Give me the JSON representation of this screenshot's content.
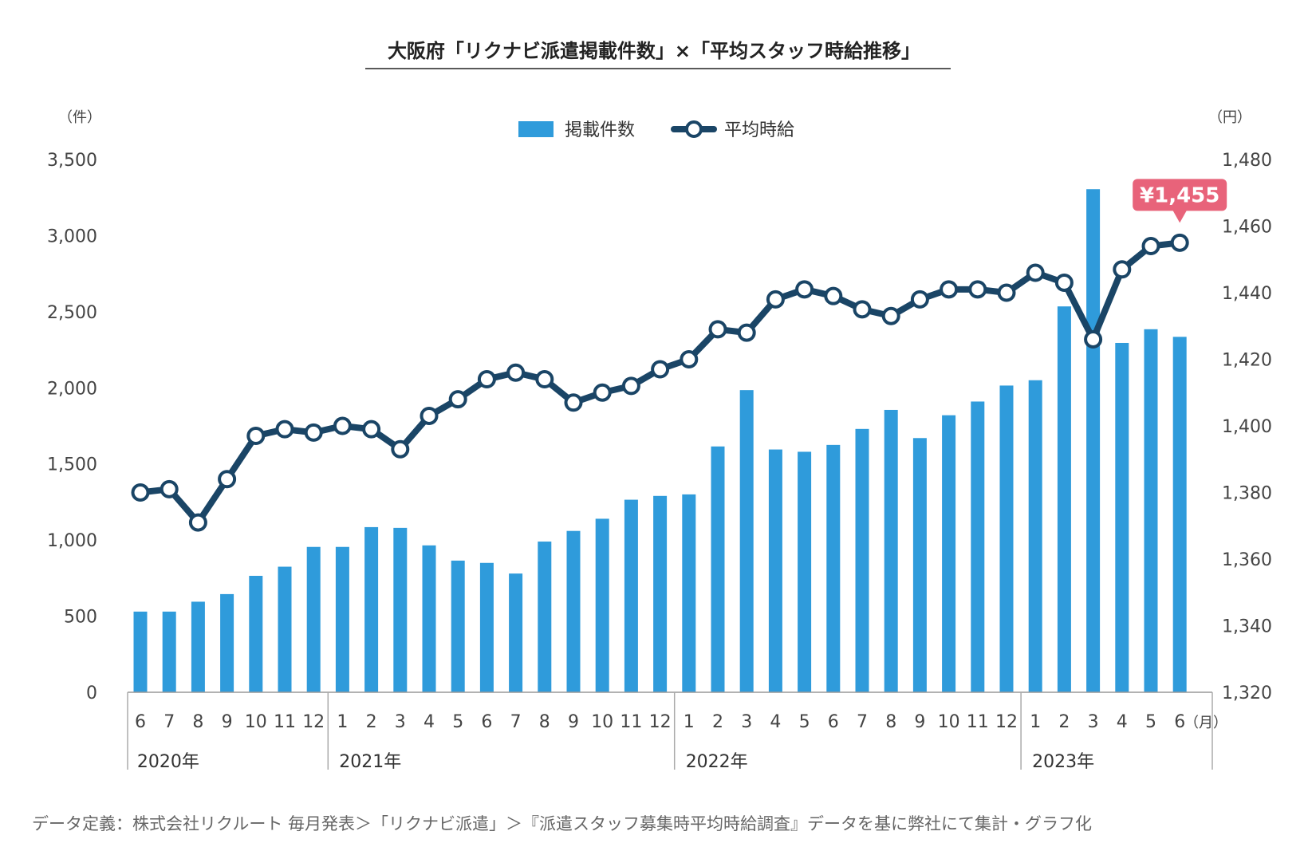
{
  "title": "大阪府「リクナビ派遣掲載件数」×「平均スタッフ時給推移」",
  "legend": {
    "bar_label": "掲載件数",
    "line_label": "平均時給"
  },
  "axes": {
    "left_unit": "（件）",
    "right_unit": "（円）",
    "x_unit": "（月）",
    "left_ticks": [
      "0",
      "500",
      "1,000",
      "1,500",
      "2,000",
      "2,500",
      "3,000",
      "3,500"
    ],
    "right_ticks": [
      "1,320",
      "1,340",
      "1,360",
      "1,380",
      "1,400",
      "1,420",
      "1,440",
      "1,460",
      "1,480"
    ]
  },
  "years": [
    "2020年",
    "2021年",
    "2022年",
    "2023年"
  ],
  "callout": "¥1,455",
  "source": "データ定義：株式会社リクルート 毎月発表＞「リクナビ派遣」＞『派遣スタッフ募集時平均時給調査』データを基に弊社にて集計・グラフ化",
  "colors": {
    "bar": "#2f9bdb",
    "line": "#1a4566",
    "callout": "#e8637a"
  },
  "chart_data": {
    "type": "bar",
    "categories": [
      "6",
      "7",
      "8",
      "9",
      "10",
      "11",
      "12",
      "1",
      "2",
      "3",
      "4",
      "5",
      "6",
      "7",
      "8",
      "9",
      "10",
      "11",
      "12",
      "1",
      "2",
      "3",
      "4",
      "5",
      "6",
      "7",
      "8",
      "9",
      "10",
      "11",
      "12",
      "1",
      "2",
      "3",
      "4",
      "5",
      "6"
    ],
    "left_ylim": [
      0,
      3500
    ],
    "right_ylim": [
      1320,
      1480
    ],
    "series": [
      {
        "name": "掲載件数",
        "type": "bar",
        "axis": "left",
        "values": [
          530,
          530,
          595,
          645,
          765,
          825,
          955,
          955,
          1085,
          1080,
          965,
          865,
          850,
          780,
          990,
          1060,
          1140,
          1265,
          1290,
          1300,
          1615,
          1985,
          1595,
          1580,
          1625,
          1730,
          1855,
          1670,
          1820,
          1910,
          2015,
          2050,
          2535,
          3305,
          2295,
          2385,
          2335
        ]
      },
      {
        "name": "平均時給",
        "type": "line",
        "axis": "right",
        "values": [
          1380,
          1381,
          1371,
          1384,
          1397,
          1399,
          1398,
          1400,
          1399,
          1393,
          1403,
          1408,
          1414,
          1416,
          1414,
          1407,
          1410,
          1412,
          1417,
          1420,
          1429,
          1428,
          1438,
          1441,
          1439,
          1435,
          1433,
          1438,
          1441,
          1441,
          1440,
          1446,
          1443,
          1426,
          1447,
          1454,
          1455
        ]
      }
    ],
    "legend_position": "top-center",
    "grid": false
  }
}
